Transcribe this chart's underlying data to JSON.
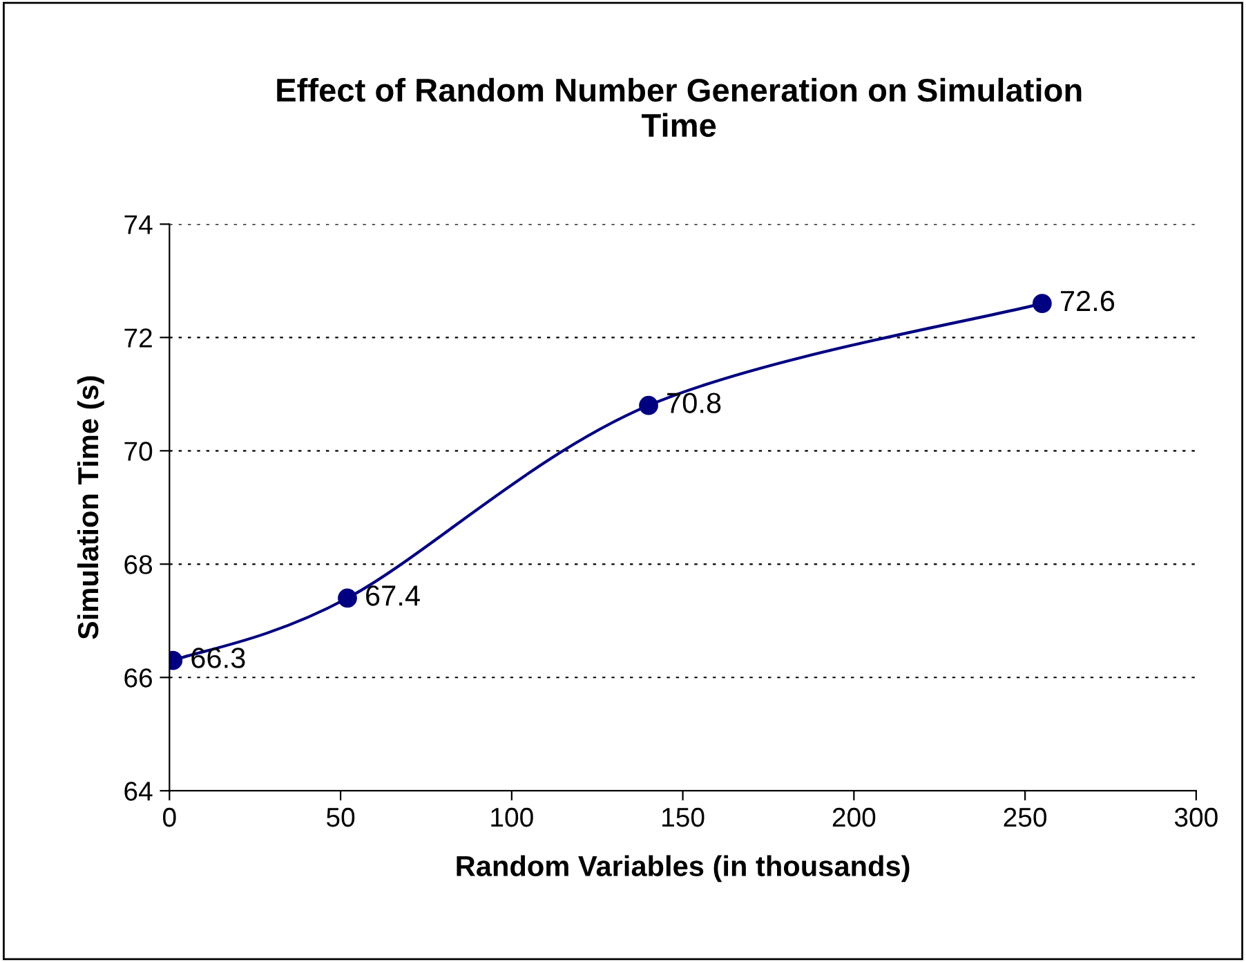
{
  "chart_data": {
    "type": "line",
    "title": "Effect of Random Number Generation on Simulation Time",
    "xlabel": "Random Variables (in thousands)",
    "ylabel": "Simulation Time (s)",
    "x": [
      1,
      52,
      140,
      255
    ],
    "series": [
      {
        "color": "#000080",
        "values": [
          66.3,
          67.4,
          70.8,
          72.6
        ]
      }
    ],
    "data_labels": true,
    "marker": "circle",
    "line_style": "solid",
    "xlim": [
      0,
      300
    ],
    "xticks": [
      0,
      50,
      100,
      150,
      200,
      250,
      300
    ],
    "ylim": [
      64,
      74
    ],
    "yticks": [
      64,
      66,
      68,
      70,
      72,
      74
    ],
    "grid": "y",
    "legend": false
  }
}
